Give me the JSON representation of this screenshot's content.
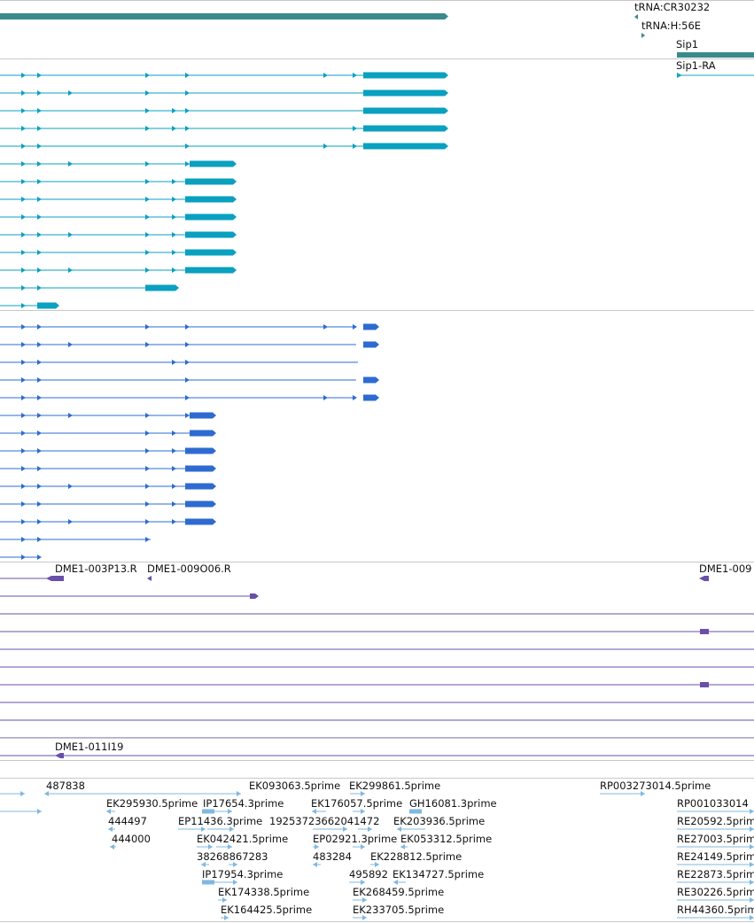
{
  "colors": {
    "gene": "#3a8a8c",
    "transcript_thick": "#0aa0c0",
    "transcript_thin": "#17a5c2",
    "cds_dark": "#2e6bd0",
    "cdna": "#6a4fa8",
    "est": "#80b8e0",
    "divider": "#c8c8c8"
  },
  "labels": {
    "trna1": "tRNA:CR30232",
    "trna2": "tRNA:H:56E",
    "sip1": "Sip1",
    "sip1_ra": "Sip1-RA",
    "dme_a": "DME1-003P13.R",
    "dme_b": "DME1-009O06.R",
    "dme_c": "DME1-009",
    "dme_d": "DME1-011I19"
  },
  "ests": [
    "487838",
    "EK093063.5prime",
    "EK299861.5prime",
    "RP003273014.5prime",
    "EK295930.5prime",
    "IP17654.3prime",
    "EK176057.5prime",
    "GH16081.3prime",
    "RP001033014",
    "444497",
    "EP11436.3prime",
    "19253723662041472",
    "EK203936.5prime",
    "RE20592.5prim",
    "444000",
    "EK042421.5prime",
    "EP02921.3prime",
    "EK053312.5prime",
    "RE27003.5prim",
    "38268867283",
    "483284",
    "EK228812.5prime",
    "RE24149.5prim",
    "IP17954.3prime",
    "495892",
    "EK134727.5prime",
    "RE22873.5prim",
    "EK174338.5prime",
    "EK268459.5prime",
    "RE30226.5prim",
    "EK164425.5prime",
    "EK233705.5prime",
    "RH44360.5prim"
  ]
}
